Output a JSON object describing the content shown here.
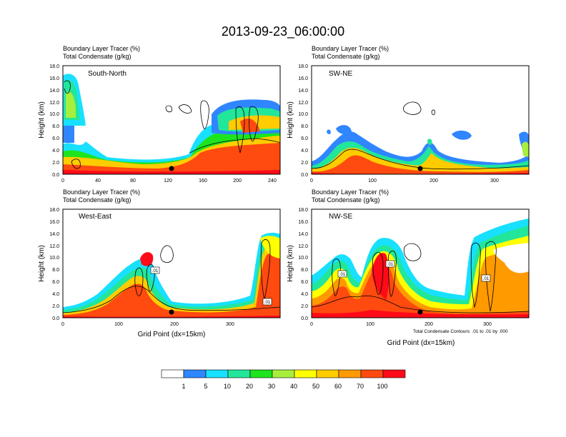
{
  "figure": {
    "title": "2013-09-23_06:00:00",
    "colorbar": {
      "colors": [
        "#ffffff",
        "#2f86ff",
        "#18e0ff",
        "#22e69a",
        "#1ee41e",
        "#a8ee3c",
        "#ffff00",
        "#ffcc00",
        "#ff9a00",
        "#ff4a10",
        "#ff0a18"
      ],
      "labels": [
        "1",
        "5",
        "10",
        "20",
        "30",
        "40",
        "50",
        "60",
        "70",
        "100"
      ]
    },
    "contour_note": "Total Condensate Contours: .01 to .01 by .000"
  },
  "panels": [
    {
      "label": "South-North",
      "line1": "Boundary Layer Tracer   (%)",
      "line2": "Total Condensate   (g/kg)",
      "ylabel": "Height (km)",
      "xlabel": "",
      "yticks": [
        "0.0",
        "2.0",
        "4.0",
        "6.0",
        "8.0",
        "10.0",
        "12.0",
        "14.0",
        "16.0",
        "18.0"
      ],
      "xticks": [
        "0",
        "40",
        "80",
        "120",
        "160",
        "200",
        "240"
      ]
    },
    {
      "label": "SW-NE",
      "line1": "Boundary Layer Tracer   (%)",
      "line2": "Total Condensate   (g/kg)",
      "ylabel": "Height (km)",
      "xlabel": "",
      "yticks": [
        "0.0",
        "2.0",
        "4.0",
        "6.0",
        "8.0",
        "10.0",
        "12.0",
        "14.0",
        "16.0",
        "18.0"
      ],
      "xticks": [
        "0",
        "100",
        "200",
        "300"
      ]
    },
    {
      "label": "West-East",
      "line1": "Boundary Layer Tracer   (%)",
      "line2": "Total Condensate   (g/kg)",
      "ylabel": "Height (km)",
      "xlabel": "Grid Point (dx=15km)",
      "yticks": [
        "0.0",
        "2.0",
        "4.0",
        "6.0",
        "8.0",
        "10.0",
        "12.0",
        "14.0",
        "16.0",
        "18.0"
      ],
      "xticks": [
        "0",
        "100",
        "200",
        "300"
      ],
      "contour_labels": [
        ".01",
        ".01"
      ]
    },
    {
      "label": "NW-SE",
      "line1": "Boundary Layer Tracer   (%)",
      "line2": "Total Condensate   (g/kg)",
      "ylabel": "Height (km)",
      "xlabel": "Grid Point (dx=15km)",
      "yticks": [
        "0.0",
        "2.0",
        "4.0",
        "6.0",
        "8.0",
        "10.0",
        "12.0",
        "14.0",
        "16.0",
        "18.0"
      ],
      "xticks": [
        "0",
        "100",
        "200",
        "300"
      ],
      "contour_labels": [
        ".01",
        ".01",
        ".01"
      ]
    }
  ],
  "chart_data": [
    {
      "type": "heatmap",
      "title": "South-North",
      "ylabel": "Height (km)",
      "xlim": [
        0,
        250
      ],
      "ylim": [
        0,
        18
      ],
      "levels": [
        1,
        5,
        10,
        20,
        30,
        40,
        50,
        60,
        70,
        100
      ],
      "marker": {
        "x": 125,
        "y": 1.0
      }
    },
    {
      "type": "heatmap",
      "title": "SW-NE",
      "ylabel": "Height (km)",
      "xlim": [
        0,
        355
      ],
      "ylim": [
        0,
        18
      ],
      "levels": [
        1,
        5,
        10,
        20,
        30,
        40,
        50,
        60,
        70,
        100
      ],
      "marker": {
        "x": 178,
        "y": 1.0
      }
    },
    {
      "type": "heatmap",
      "title": "West-East",
      "ylabel": "Height (km)",
      "xlabel": "Grid Point (dx=15km)",
      "xlim": [
        0,
        390
      ],
      "ylim": [
        0,
        18
      ],
      "levels": [
        1,
        5,
        10,
        20,
        30,
        40,
        50,
        60,
        70,
        100
      ],
      "marker": {
        "x": 192,
        "y": 1.0
      }
    },
    {
      "type": "heatmap",
      "title": "NW-SE",
      "ylabel": "Height (km)",
      "xlabel": "Grid Point (dx=15km)",
      "xlim": [
        0,
        370
      ],
      "ylim": [
        0,
        18
      ],
      "levels": [
        1,
        5,
        10,
        20,
        30,
        40,
        50,
        60,
        70,
        100
      ],
      "marker": {
        "x": 180,
        "y": 1.0
      }
    }
  ]
}
